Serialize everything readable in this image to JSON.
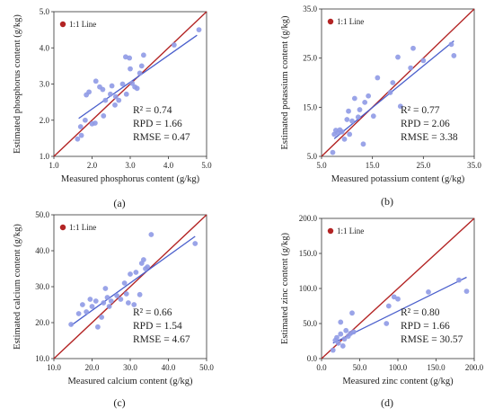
{
  "colors": {
    "one_to_one_line": "#b32424",
    "points": "#8f9ae6",
    "fit_line": "#4a5fcc",
    "axis": "#333333"
  },
  "chart_data": [
    {
      "type": "scatter",
      "caption": "(a)",
      "title": "",
      "xlabel": "Measured phosphorus content (g/kg)",
      "ylabel": "Estimated phosphorus content (g/kg)",
      "xlim": [
        1.0,
        5.0
      ],
      "ylim": [
        1.0,
        5.0
      ],
      "xticks": [
        "1.0",
        "2.0",
        "3.0",
        "4.0",
        "5.0"
      ],
      "yticks": [
        "1.0",
        "2.0",
        "3.0",
        "4.0",
        "5.0"
      ],
      "legend": "1:1 Line",
      "stats": {
        "r2": "R² = 0.74",
        "rpd": "RPD = 1.66",
        "rmse": "RMSE = 0.47"
      },
      "fit": [
        [
          1.65,
          2.05
        ],
        [
          4.75,
          4.35
        ]
      ],
      "points": [
        [
          1.62,
          1.48
        ],
        [
          1.72,
          1.58
        ],
        [
          1.7,
          1.82
        ],
        [
          1.82,
          2.0
        ],
        [
          1.85,
          2.7
        ],
        [
          1.92,
          2.78
        ],
        [
          2.0,
          1.9
        ],
        [
          2.08,
          1.92
        ],
        [
          2.1,
          3.08
        ],
        [
          2.2,
          2.92
        ],
        [
          2.28,
          2.85
        ],
        [
          2.3,
          2.12
        ],
        [
          2.35,
          2.55
        ],
        [
          2.48,
          2.72
        ],
        [
          2.52,
          2.95
        ],
        [
          2.6,
          2.42
        ],
        [
          2.62,
          2.65
        ],
        [
          2.7,
          2.55
        ],
        [
          2.8,
          3.0
        ],
        [
          2.88,
          3.75
        ],
        [
          2.9,
          2.72
        ],
        [
          2.98,
          3.72
        ],
        [
          3.0,
          3.42
        ],
        [
          3.05,
          3.02
        ],
        [
          3.12,
          2.92
        ],
        [
          3.18,
          2.88
        ],
        [
          3.25,
          3.3
        ],
        [
          3.3,
          3.5
        ],
        [
          3.35,
          3.8
        ],
        [
          4.15,
          4.08
        ],
        [
          4.8,
          4.5
        ]
      ]
    },
    {
      "type": "scatter",
      "caption": "(b)",
      "title": "",
      "xlabel": "Measured potassium content (g/kg)",
      "ylabel": "Estimated potassium content (g/kg)",
      "xlim": [
        5.0,
        35.0
      ],
      "ylim": [
        5.0,
        35.0
      ],
      "xticks": [
        "5.0",
        "15.0",
        "25.0",
        "35.0"
      ],
      "yticks": [
        "5.0",
        "15.0",
        "25.0",
        "35.0"
      ],
      "legend": "1:1 Line",
      "stats": {
        "r2": "R² = 0.77",
        "rpd": "RPD = 2.06",
        "rmse": "RMSE = 3.38"
      },
      "fit": [
        [
          7.5,
          8.6
        ],
        [
          31.0,
          28.5
        ]
      ],
      "points": [
        [
          7.2,
          5.8
        ],
        [
          7.5,
          9.5
        ],
        [
          7.8,
          10.3
        ],
        [
          8.2,
          9.8
        ],
        [
          8.6,
          10.4
        ],
        [
          9.0,
          10.0
        ],
        [
          9.5,
          8.5
        ],
        [
          10.0,
          12.5
        ],
        [
          10.3,
          14.2
        ],
        [
          10.5,
          9.5
        ],
        [
          11.0,
          12.2
        ],
        [
          11.5,
          16.8
        ],
        [
          12.2,
          13.0
        ],
        [
          12.5,
          14.5
        ],
        [
          13.2,
          7.5
        ],
        [
          13.5,
          16.0
        ],
        [
          14.2,
          17.3
        ],
        [
          15.2,
          13.2
        ],
        [
          16.0,
          21.0
        ],
        [
          18.5,
          18.0
        ],
        [
          19.0,
          20.0
        ],
        [
          20.0,
          25.2
        ],
        [
          20.5,
          15.2
        ],
        [
          22.5,
          23.0
        ],
        [
          23.0,
          27.0
        ],
        [
          25.0,
          24.5
        ],
        [
          30.5,
          27.8
        ],
        [
          31.0,
          25.5
        ]
      ]
    },
    {
      "type": "scatter",
      "caption": "(c)",
      "title": "",
      "xlabel": "Measured calcium content (g/kg)",
      "ylabel": "Estimated calcium content (g/kg)",
      "xlim": [
        10.0,
        50.0
      ],
      "ylim": [
        10.0,
        50.0
      ],
      "xticks": [
        "10.0",
        "20.0",
        "30.0",
        "40.0",
        "50.0"
      ],
      "yticks": [
        "10.0",
        "20.0",
        "30.0",
        "40.0",
        "50.0"
      ],
      "legend": "1:1 Line",
      "stats": {
        "r2": "R² = 0.66",
        "rpd": "RPD = 1.54",
        "rmse": "RMSE = 4.67"
      },
      "fit": [
        [
          14.5,
          19.2
        ],
        [
          47.0,
          44.0
        ]
      ],
      "points": [
        [
          14.5,
          19.5
        ],
        [
          16.5,
          22.5
        ],
        [
          17.5,
          25.0
        ],
        [
          18.5,
          23.0
        ],
        [
          19.5,
          26.5
        ],
        [
          20.0,
          24.5
        ],
        [
          21.0,
          26.0
        ],
        [
          21.5,
          18.8
        ],
        [
          22.5,
          21.5
        ],
        [
          23.0,
          25.5
        ],
        [
          23.5,
          29.5
        ],
        [
          24.0,
          27.0
        ],
        [
          24.5,
          24.5
        ],
        [
          25.0,
          26.0
        ],
        [
          26.5,
          27.5
        ],
        [
          27.5,
          26.5
        ],
        [
          28.5,
          31.0
        ],
        [
          29.0,
          28.0
        ],
        [
          29.5,
          25.5
        ],
        [
          30.0,
          33.5
        ],
        [
          31.0,
          25.0
        ],
        [
          31.5,
          34.0
        ],
        [
          32.5,
          27.8
        ],
        [
          33.0,
          36.5
        ],
        [
          33.5,
          37.5
        ],
        [
          34.0,
          35.0
        ],
        [
          34.5,
          35.5
        ],
        [
          35.5,
          44.5
        ],
        [
          47.0,
          42.0
        ]
      ]
    },
    {
      "type": "scatter",
      "caption": "(d)",
      "title": "",
      "xlabel": "Measured zinc content (g/kg)",
      "ylabel": "Estimated zinc content (g/kg)",
      "xlim": [
        0.0,
        200.0
      ],
      "ylim": [
        0.0,
        200.0
      ],
      "xticks": [
        "0.0",
        "50.0",
        "100.0",
        "150.0",
        "200.0"
      ],
      "yticks": [
        "0.0",
        "50.0",
        "100.0",
        "150.0",
        "200.0"
      ],
      "legend": "1:1 Line",
      "stats": {
        "r2": "R² = 0.80",
        "rpd": "RPD = 1.66",
        "rmse": "RMSE = 30.57"
      },
      "fit": [
        [
          15.0,
          22.0
        ],
        [
          190.0,
          116.0
        ]
      ],
      "points": [
        [
          15.0,
          12.0
        ],
        [
          18.0,
          26.0
        ],
        [
          20.0,
          30.0
        ],
        [
          22.0,
          22.0
        ],
        [
          25.0,
          35.0
        ],
        [
          25.0,
          52.0
        ],
        [
          28.0,
          18.0
        ],
        [
          30.0,
          28.0
        ],
        [
          32.0,
          40.0
        ],
        [
          35.0,
          32.0
        ],
        [
          38.0,
          36.0
        ],
        [
          40.0,
          65.0
        ],
        [
          42.0,
          38.0
        ],
        [
          85.0,
          50.0
        ],
        [
          88.0,
          75.0
        ],
        [
          95.0,
          88.0
        ],
        [
          100.0,
          85.0
        ],
        [
          140.0,
          95.0
        ],
        [
          180.0,
          112.0
        ],
        [
          190.0,
          96.0
        ]
      ]
    }
  ]
}
